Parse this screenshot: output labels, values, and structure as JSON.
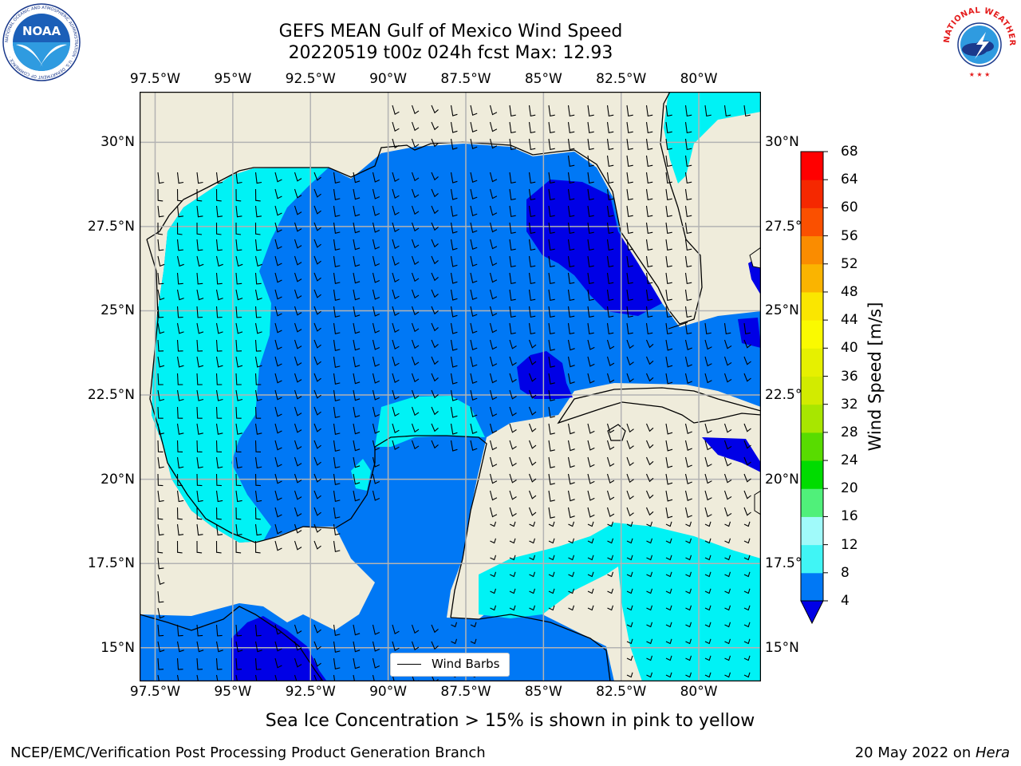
{
  "title": {
    "line1": "GEFS MEAN Gulf of Mexico Wind Speed",
    "line2": "20220519 t00z 024h fcst   Max: 12.93"
  },
  "map": {
    "lon_range": [
      -98.0,
      -78.0
    ],
    "lat_range": [
      14.0,
      31.5
    ],
    "lon_ticks": [
      "97.5°W",
      "95°W",
      "92.5°W",
      "90°W",
      "87.5°W",
      "85°W",
      "82.5°W",
      "80°W"
    ],
    "lon_tick_values": [
      -97.5,
      -95,
      -92.5,
      -90,
      -87.5,
      -85,
      -82.5,
      -80
    ],
    "lat_ticks": [
      "15°N",
      "17.5°N",
      "20°N",
      "22.5°N",
      "25°N",
      "27.5°N",
      "30°N"
    ],
    "lat_tick_values": [
      15,
      17.5,
      20,
      22.5,
      25,
      27.5,
      30
    ],
    "land_color": "#efecdb",
    "grid": true,
    "legend_label": "Wind Barbs"
  },
  "colorbar": {
    "label": "Wind Speed [m/s]",
    "ticks": [
      "4",
      "8",
      "12",
      "16",
      "20",
      "24",
      "28",
      "32",
      "36",
      "40",
      "44",
      "48",
      "52",
      "56",
      "60",
      "64",
      "68"
    ],
    "under_color": "#0000e6",
    "colors": [
      "#0078f5",
      "#00e6f5",
      "#40f5f5",
      "#a0fafa",
      "#50f07a",
      "#00dc00",
      "#58dc00",
      "#a8e600",
      "#d2eb00",
      "#e6f000",
      "#fafa00",
      "#fae600",
      "#fab400",
      "#fa8c00",
      "#fa5000",
      "#f52800",
      "#ff0000"
    ]
  },
  "fill_colors": {
    "band_4_8": "#0078f5",
    "band_8_12": "#00f2f5",
    "band_below_4": "#0000e6"
  },
  "note": "Sea Ice Concentration > 15% is shown in pink to yellow",
  "footer": {
    "left": "NCEP/EMC/Verification Post Processing Product Generation Branch",
    "right_date": "20 May 2022 on ",
    "right_host": "Hera"
  },
  "logos": {
    "noaa": "NOAA",
    "noaa_ring": "NATIONAL OCEANIC AND ATMOSPHERIC ADMINISTRATION · U.S. DEPARTMENT OF COMMERCE ·",
    "nws_ring": "NATIONAL WEATHER SERVICE"
  }
}
